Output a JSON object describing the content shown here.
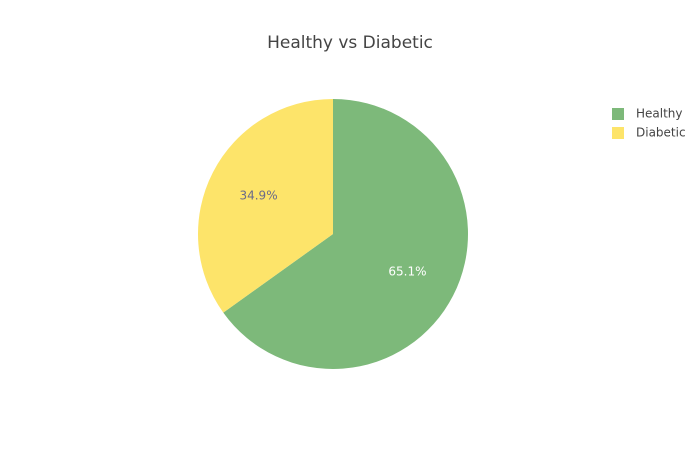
{
  "chart_data": {
    "type": "pie",
    "title": "Healthy vs Diabetic",
    "categories": [
      "Healthy",
      "Diabetic"
    ],
    "values": [
      65.1,
      34.9
    ],
    "labels": [
      "65.1%",
      "34.9%"
    ],
    "colors": [
      "#7DB97A",
      "#FDE46A"
    ],
    "label_colors": [
      "#ffffff",
      "#6b6b8a"
    ],
    "legend": {
      "placement": "top-right",
      "entries": [
        "Healthy",
        "Diabetic"
      ]
    },
    "direction": "clockwise",
    "start_angle": "top"
  }
}
